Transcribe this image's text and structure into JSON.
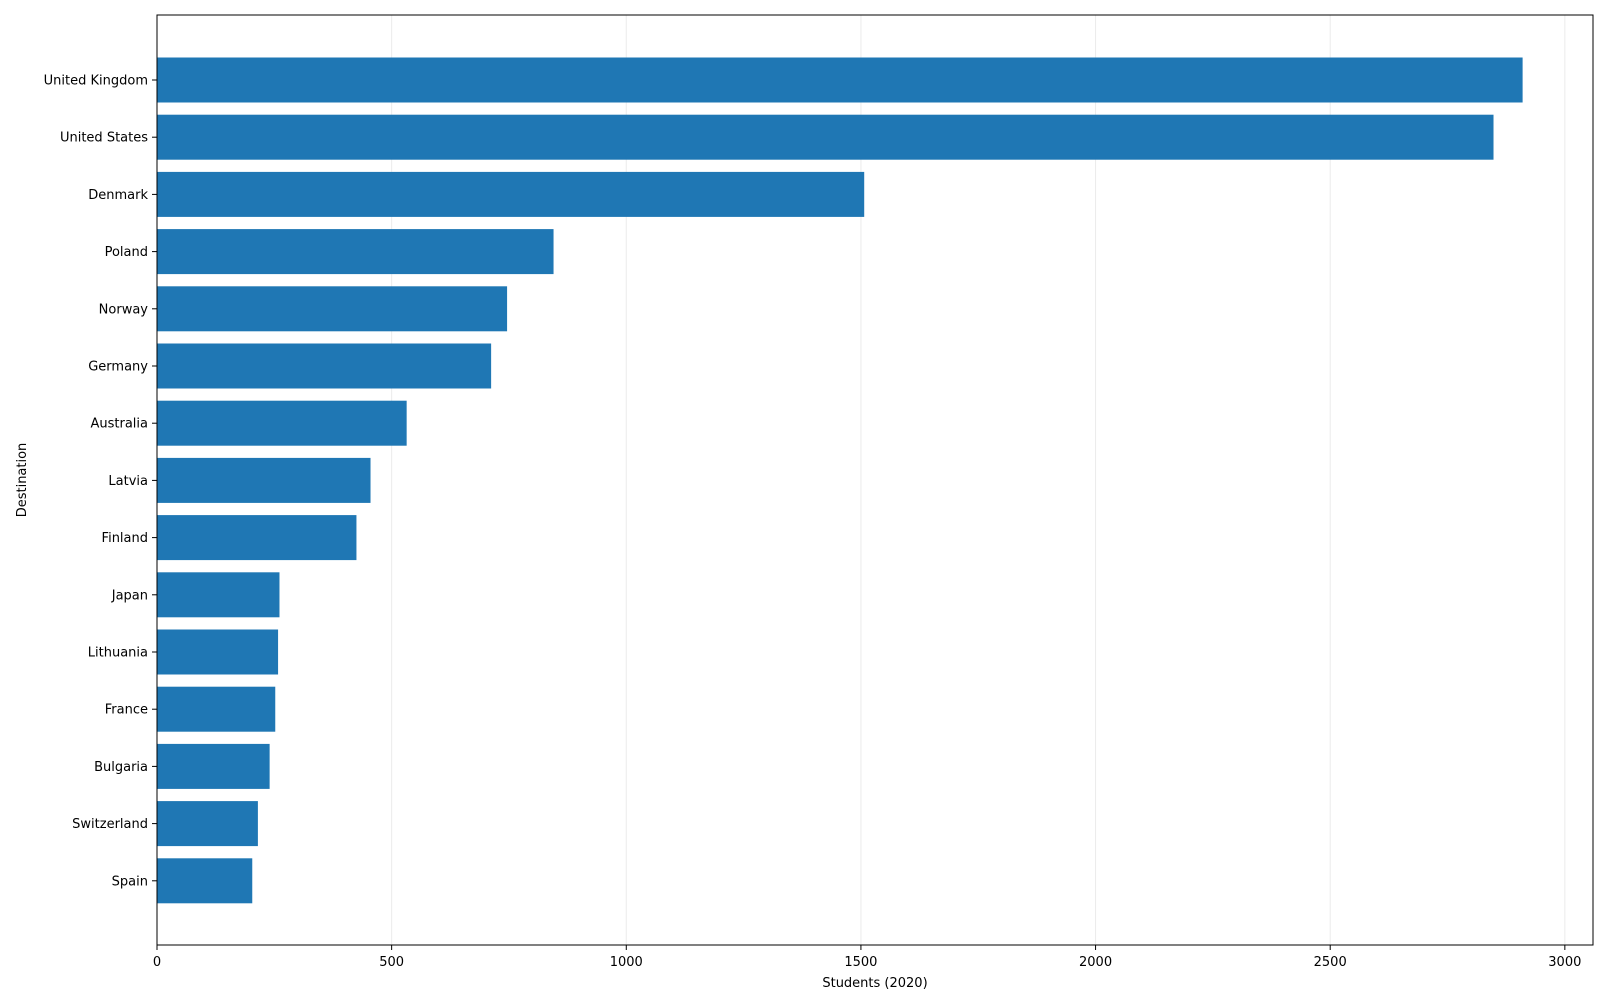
{
  "chart_data": {
    "type": "bar",
    "orientation": "horizontal",
    "title": "",
    "xlabel": "Students (2020)",
    "ylabel": "Destination",
    "categories": [
      "United Kingdom",
      "United States",
      "Denmark",
      "Poland",
      "Norway",
      "Germany",
      "Australia",
      "Latvia",
      "Finland",
      "Japan",
      "Lithuania",
      "France",
      "Bulgaria",
      "Switzerland",
      "Spain"
    ],
    "values": [
      2910,
      2848,
      1507,
      845,
      746,
      712,
      532,
      455,
      425,
      261,
      258,
      252,
      240,
      215,
      203
    ],
    "xlim": [
      0,
      3060
    ],
    "xticks": [
      0,
      500,
      1000,
      1500,
      2000,
      2500,
      3000
    ],
    "grid": "vertical",
    "bar_color": "#1f77b4",
    "grid_color": "#ebebeb"
  }
}
